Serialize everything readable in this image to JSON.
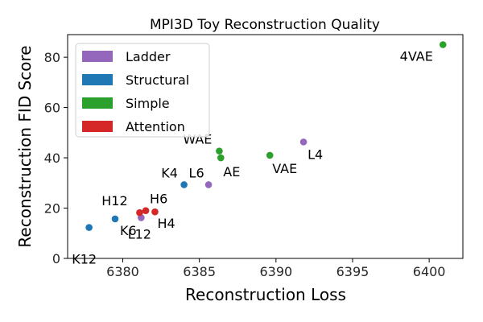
{
  "chart_data": {
    "type": "scatter",
    "title": "MPI3D Toy Reconstruction Quality",
    "xlabel": "Reconstruction Loss",
    "ylabel": "Reconstruction FID Score",
    "xlim": [
      6376.4,
      6402.2
    ],
    "ylim": [
      0,
      89
    ],
    "xticks": [
      6380,
      6385,
      6390,
      6395,
      6400
    ],
    "yticks": [
      0,
      20,
      40,
      60,
      80
    ],
    "legend_position": "top-left",
    "series": [
      {
        "name": "Ladder",
        "color": "#9467bd",
        "points": [
          {
            "label": "L4",
            "x": 6391.8,
            "y": 46.3
          },
          {
            "label": "L6",
            "x": 6385.6,
            "y": 29.3
          },
          {
            "label": "L12",
            "x": 6381.2,
            "y": 16.2
          }
        ]
      },
      {
        "name": "Structural",
        "color": "#1f77b4",
        "points": [
          {
            "label": "K4",
            "x": 6384.0,
            "y": 29.3
          },
          {
            "label": "K6",
            "x": 6379.5,
            "y": 15.7
          },
          {
            "label": "K12",
            "x": 6377.8,
            "y": 12.3
          }
        ]
      },
      {
        "name": "Simple",
        "color": "#2ca02c",
        "points": [
          {
            "label": "4VAE",
            "x": 6400.9,
            "y": 85.0
          },
          {
            "label": "WAE",
            "x": 6386.3,
            "y": 42.7
          },
          {
            "label": "AE",
            "x": 6386.4,
            "y": 40.0
          },
          {
            "label": "VAE",
            "x": 6389.6,
            "y": 41.0
          }
        ]
      },
      {
        "name": "Attention",
        "color": "#d62728",
        "points": [
          {
            "label": "H12",
            "x": 6381.1,
            "y": 18.2
          },
          {
            "label": "H6",
            "x": 6381.5,
            "y": 19.0
          },
          {
            "label": "H4",
            "x": 6382.1,
            "y": 18.5
          }
        ]
      }
    ]
  }
}
